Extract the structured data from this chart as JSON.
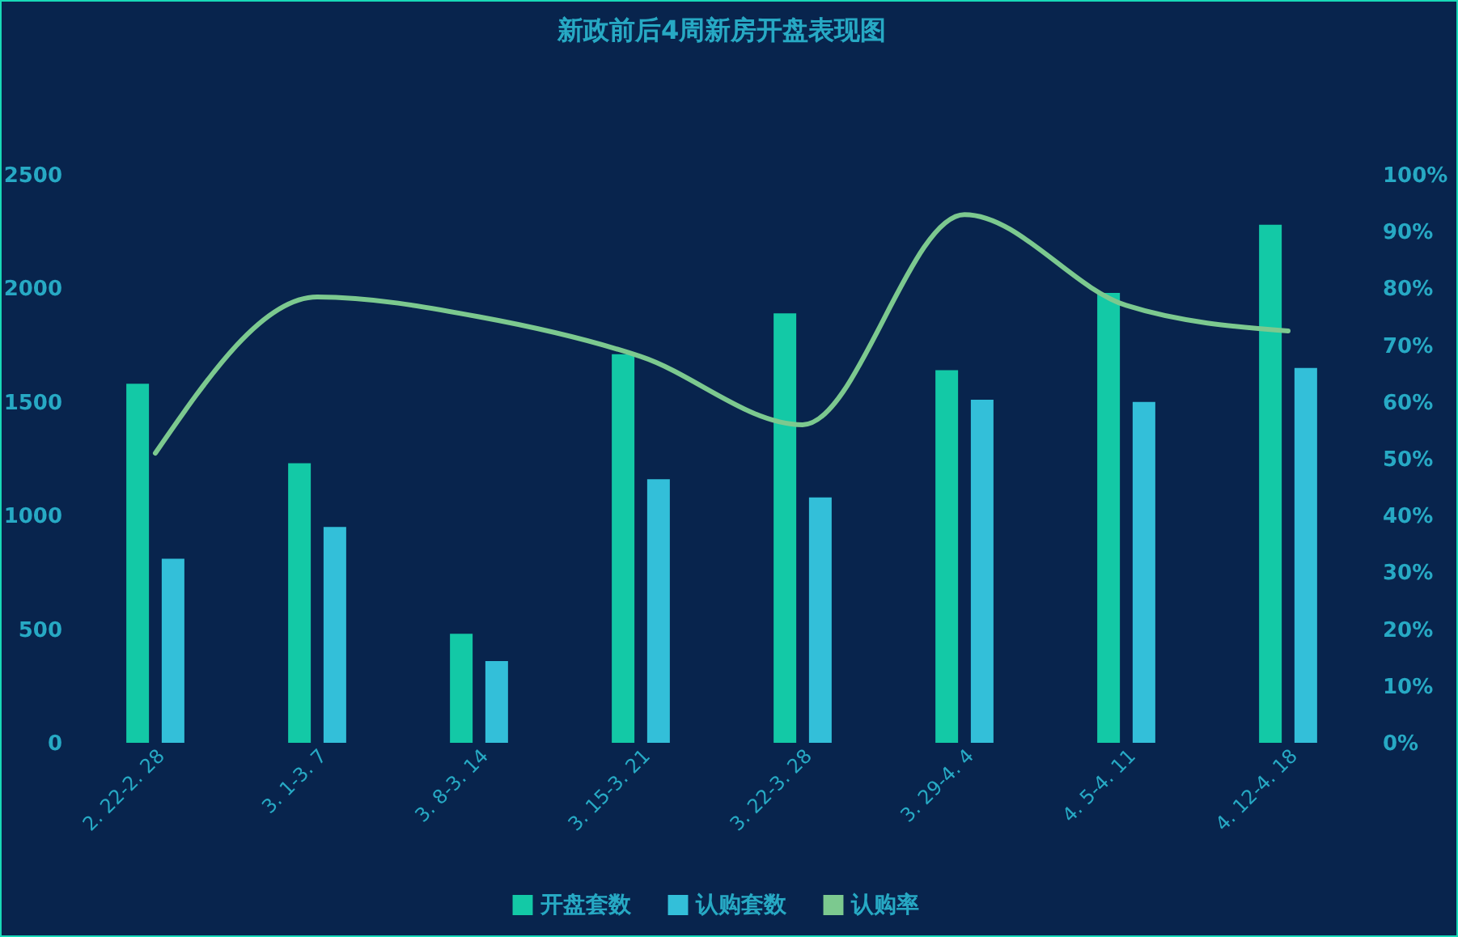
{
  "chart_data": {
    "type": "bar",
    "title": "新政前后4周新房开盘表现图",
    "categories": [
      "2. 22-2. 28",
      "3. 1-3. 7",
      "3. 8-3. 14",
      "3. 15-3. 21",
      "3. 22-3. 28",
      "3. 29-4. 4",
      "4. 5-4. 11",
      "4. 12-4. 18"
    ],
    "series": [
      {
        "name": "开盘套数",
        "color": "#13c9a6",
        "values": [
          1580,
          1230,
          480,
          1710,
          1890,
          1640,
          1980,
          2280
        ]
      },
      {
        "name": "认购套数",
        "color": "#33bfd9",
        "values": [
          810,
          950,
          360,
          1160,
          1080,
          1510,
          1500,
          1650
        ]
      },
      {
        "name": "认购率",
        "type": "line",
        "axis": "y2",
        "color": "#7cc98f",
        "values": [
          51,
          78.5,
          75,
          68,
          56,
          93,
          77,
          72.5
        ]
      }
    ],
    "ylim": [
      0,
      2500
    ],
    "yticks": [
      0,
      500,
      1000,
      1500,
      2000,
      2500
    ],
    "y2lim": [
      0,
      100
    ],
    "y2ticks": [
      {
        "value": 0,
        "label": "0%"
      },
      {
        "value": 10,
        "label": "10%"
      },
      {
        "value": 20,
        "label": "20%"
      },
      {
        "value": 30,
        "label": "30%"
      },
      {
        "value": 40,
        "label": "40%"
      },
      {
        "value": 50,
        "label": "50%"
      },
      {
        "value": 60,
        "label": "60%"
      },
      {
        "value": 70,
        "label": "70%"
      },
      {
        "value": 80,
        "label": "80%"
      },
      {
        "value": 90,
        "label": "90%"
      },
      {
        "value": 100,
        "label": "100%"
      }
    ],
    "legend": "bottom"
  }
}
